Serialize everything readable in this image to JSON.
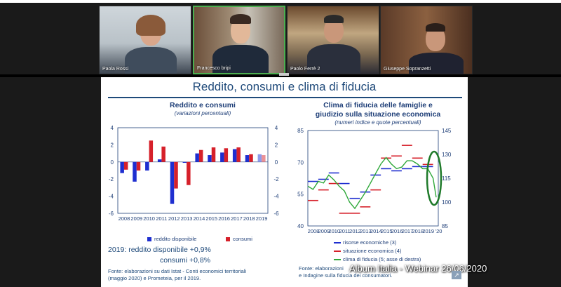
{
  "participants": [
    {
      "name": "Paola Rossi"
    },
    {
      "name": "Francesco bripi"
    },
    {
      "name": "Paolo Ferrè 2"
    },
    {
      "name": "Giuseppe Sopranzetti"
    }
  ],
  "slide": {
    "title": "Reddito, consumi e clima di fiducia",
    "left_title": "Reddito e consumi",
    "left_subtitle": "(variazioni percentuali)",
    "right_title_1": "Clima di fiducia delle famiglie e",
    "right_title_2": "giudizio sulla situazione economica",
    "right_subtitle": "(numeri indice e quote percentuali)",
    "legend_left": [
      "reddito disponibile",
      "consumi"
    ],
    "legend_right": [
      "risorse economiche (3)",
      "situazione economica (4)",
      "clima di fiducia (5; asse di destra)"
    ],
    "note_1": "2019: reddito disponibile +0,9%",
    "note_2": "consumi +0,8%",
    "source_left_1": "Fonte: elaborazioni su dati Istat - Conti economici territoriali",
    "source_left_2": "(maggio 2020) e Prometeia, per il 2019.",
    "source_right_1": "Fonte: elaborazioni",
    "source_right_2": "e Indagine sulla fiducia dei consumatori."
  },
  "overlay_text": "Album Italia - Webinar 26/06/2020",
  "colors": {
    "reddito": "#1f2fd0",
    "consumi": "#d6202a",
    "green": "#2fa83a",
    "title": "#1f4a7a"
  },
  "chart_data": [
    {
      "type": "bar",
      "title": "Reddito e consumi",
      "subtitle": "(variazioni percentuali)",
      "categories": [
        "2008",
        "2009",
        "2010",
        "2011",
        "2012",
        "2013",
        "2014",
        "2015",
        "2016",
        "2017",
        "2018",
        "2019"
      ],
      "series": [
        {
          "name": "reddito disponibile",
          "values": [
            -1.3,
            -2.3,
            -1.0,
            0.3,
            -4.9,
            -0.1,
            1.0,
            0.8,
            1.1,
            1.5,
            0.8,
            0.9
          ]
        },
        {
          "name": "consumi",
          "values": [
            -0.9,
            -1.0,
            2.5,
            1.8,
            -3.1,
            -2.7,
            1.4,
            1.7,
            1.6,
            1.7,
            0.9,
            0.8
          ]
        }
      ],
      "ylim": [
        -6,
        4
      ],
      "yticks": [
        -6,
        -4,
        -2,
        0,
        2,
        4
      ]
    },
    {
      "type": "line",
      "title": "Clima di fiducia delle famiglie e giudizio sulla situazione economica",
      "subtitle": "(numeri indice e quote percentuali)",
      "x_labels": [
        "2008",
        "2009",
        "2010",
        "2011",
        "2012",
        "2013",
        "2014",
        "2015",
        "2016",
        "2017",
        "2018",
        "2019",
        "'20"
      ],
      "ylim_left": [
        40,
        85
      ],
      "yticks_left": [
        40,
        55,
        70,
        85
      ],
      "ylim_right": [
        85,
        145
      ],
      "yticks_right": [
        85,
        100,
        115,
        130,
        145
      ],
      "series": [
        {
          "name": "risorse economiche (3)",
          "axis": "left",
          "x": [
            2008,
            2009,
            2010,
            2011,
            2012,
            2013,
            2014,
            2015,
            2016,
            2017,
            2018,
            2019
          ],
          "values": [
            61,
            62,
            65,
            60,
            53,
            56,
            64,
            67,
            66,
            67,
            68,
            68
          ]
        },
        {
          "name": "situazione economica (4)",
          "axis": "left",
          "x": [
            2008,
            2009,
            2010,
            2011,
            2012,
            2013,
            2014,
            2015,
            2016,
            2017,
            2018,
            2019
          ],
          "values": [
            52,
            57,
            60,
            46,
            46,
            49,
            57,
            72,
            73,
            78,
            72,
            69
          ]
        },
        {
          "name": "clima di fiducia (5; asse di destra)",
          "axis": "right",
          "x": [
            2008.0,
            2008.5,
            2009.0,
            2009.5,
            2010.0,
            2010.5,
            2011.0,
            2011.5,
            2012.0,
            2012.5,
            2013.0,
            2013.5,
            2014.0,
            2014.5,
            2015.0,
            2015.5,
            2016.0,
            2016.5,
            2017.0,
            2017.5,
            2018.0,
            2018.5,
            2019.0,
            2019.5,
            2020.0,
            2020.3
          ],
          "values": [
            110,
            108,
            113,
            112,
            117,
            114,
            110,
            107,
            100,
            96,
            101,
            106,
            112,
            118,
            124,
            128,
            124,
            121,
            122,
            126,
            126,
            124,
            121,
            121,
            115,
            103
          ]
        }
      ]
    }
  ]
}
